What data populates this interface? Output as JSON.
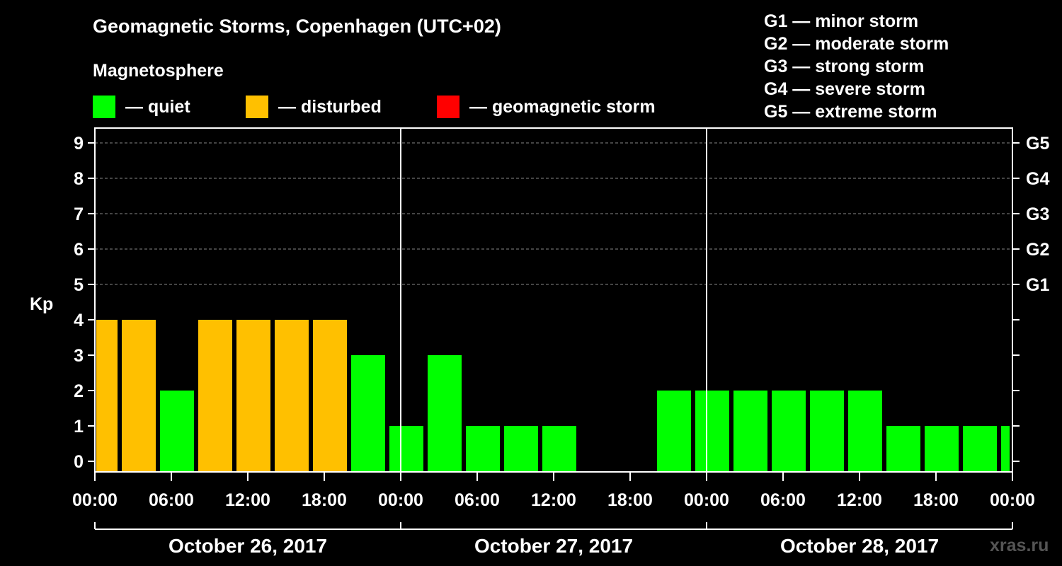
{
  "header": {
    "title": "Geomagnetic Storms, Copenhagen (UTC+02)",
    "subtitle": "Magnetosphere"
  },
  "legend": [
    {
      "label": "— quiet",
      "color": "#00ff00"
    },
    {
      "label": "— disturbed",
      "color": "#ffc000"
    },
    {
      "label": "— geomagnetic storm",
      "color": "#ff0000"
    }
  ],
  "storm_scale": [
    "G1 — minor storm",
    "G2 — moderate storm",
    "G3 — strong storm",
    "G4 — severe storm",
    "G5 — extreme storm"
  ],
  "watermark": "xras.ru",
  "chart_data": {
    "type": "bar",
    "title": "Geomagnetic Storms, Copenhagen (UTC+02)",
    "ylabel": "Kp",
    "ylim": [
      0,
      9
    ],
    "yticks": [
      "0",
      "1",
      "2",
      "3",
      "4",
      "5",
      "6",
      "7",
      "8",
      "9"
    ],
    "right_ticks": [
      {
        "value": 5,
        "label": "G1"
      },
      {
        "value": 6,
        "label": "G2"
      },
      {
        "value": 7,
        "label": "G3"
      },
      {
        "value": 8,
        "label": "G4"
      },
      {
        "value": 9,
        "label": "G5"
      }
    ],
    "hours_total": 72,
    "xticks": [
      {
        "hour": 0,
        "label": "00:00"
      },
      {
        "hour": 6,
        "label": "06:00"
      },
      {
        "hour": 12,
        "label": "12:00"
      },
      {
        "hour": 18,
        "label": "18:00"
      },
      {
        "hour": 24,
        "label": "00:00"
      },
      {
        "hour": 30,
        "label": "06:00"
      },
      {
        "hour": 36,
        "label": "12:00"
      },
      {
        "hour": 42,
        "label": "18:00"
      },
      {
        "hour": 48,
        "label": "00:00"
      },
      {
        "hour": 54,
        "label": "06:00"
      },
      {
        "hour": 60,
        "label": "12:00"
      },
      {
        "hour": 66,
        "label": "18:00"
      },
      {
        "hour": 72,
        "label": "00:00"
      }
    ],
    "days": [
      {
        "label": "October 26, 2017",
        "start_hour": 0,
        "end_hour": 24
      },
      {
        "label": "October 27, 2017",
        "start_hour": 24,
        "end_hour": 48
      },
      {
        "label": "October 28, 2017",
        "start_hour": 48,
        "end_hour": 72
      }
    ],
    "bars": [
      {
        "start_hour": 0,
        "end_hour": 2,
        "kp": 4,
        "status": "disturbed"
      },
      {
        "start_hour": 2,
        "end_hour": 5,
        "kp": 4,
        "status": "disturbed"
      },
      {
        "start_hour": 5,
        "end_hour": 8,
        "kp": 2,
        "status": "quiet"
      },
      {
        "start_hour": 8,
        "end_hour": 11,
        "kp": 4,
        "status": "disturbed"
      },
      {
        "start_hour": 11,
        "end_hour": 14,
        "kp": 4,
        "status": "disturbed"
      },
      {
        "start_hour": 14,
        "end_hour": 17,
        "kp": 4,
        "status": "disturbed"
      },
      {
        "start_hour": 17,
        "end_hour": 20,
        "kp": 4,
        "status": "disturbed"
      },
      {
        "start_hour": 20,
        "end_hour": 23,
        "kp": 3,
        "status": "quiet"
      },
      {
        "start_hour": 23,
        "end_hour": 26,
        "kp": 1,
        "status": "quiet"
      },
      {
        "start_hour": 26,
        "end_hour": 29,
        "kp": 3,
        "status": "quiet"
      },
      {
        "start_hour": 29,
        "end_hour": 32,
        "kp": 1,
        "status": "quiet"
      },
      {
        "start_hour": 32,
        "end_hour": 35,
        "kp": 1,
        "status": "quiet"
      },
      {
        "start_hour": 35,
        "end_hour": 38,
        "kp": 1,
        "status": "quiet"
      },
      {
        "start_hour": 44,
        "end_hour": 47,
        "kp": 2,
        "status": "quiet"
      },
      {
        "start_hour": 47,
        "end_hour": 50,
        "kp": 2,
        "status": "quiet"
      },
      {
        "start_hour": 50,
        "end_hour": 53,
        "kp": 2,
        "status": "quiet"
      },
      {
        "start_hour": 53,
        "end_hour": 56,
        "kp": 2,
        "status": "quiet"
      },
      {
        "start_hour": 56,
        "end_hour": 59,
        "kp": 2,
        "status": "quiet"
      },
      {
        "start_hour": 59,
        "end_hour": 62,
        "kp": 2,
        "status": "quiet"
      },
      {
        "start_hour": 62,
        "end_hour": 65,
        "kp": 1,
        "status": "quiet"
      },
      {
        "start_hour": 65,
        "end_hour": 68,
        "kp": 1,
        "status": "quiet"
      },
      {
        "start_hour": 68,
        "end_hour": 71,
        "kp": 1,
        "status": "quiet"
      },
      {
        "start_hour": 71,
        "end_hour": 72,
        "kp": 1,
        "status": "quiet"
      }
    ],
    "status_colors": {
      "quiet": "#00ff00",
      "disturbed": "#ffc000",
      "storm": "#ff0000"
    }
  }
}
